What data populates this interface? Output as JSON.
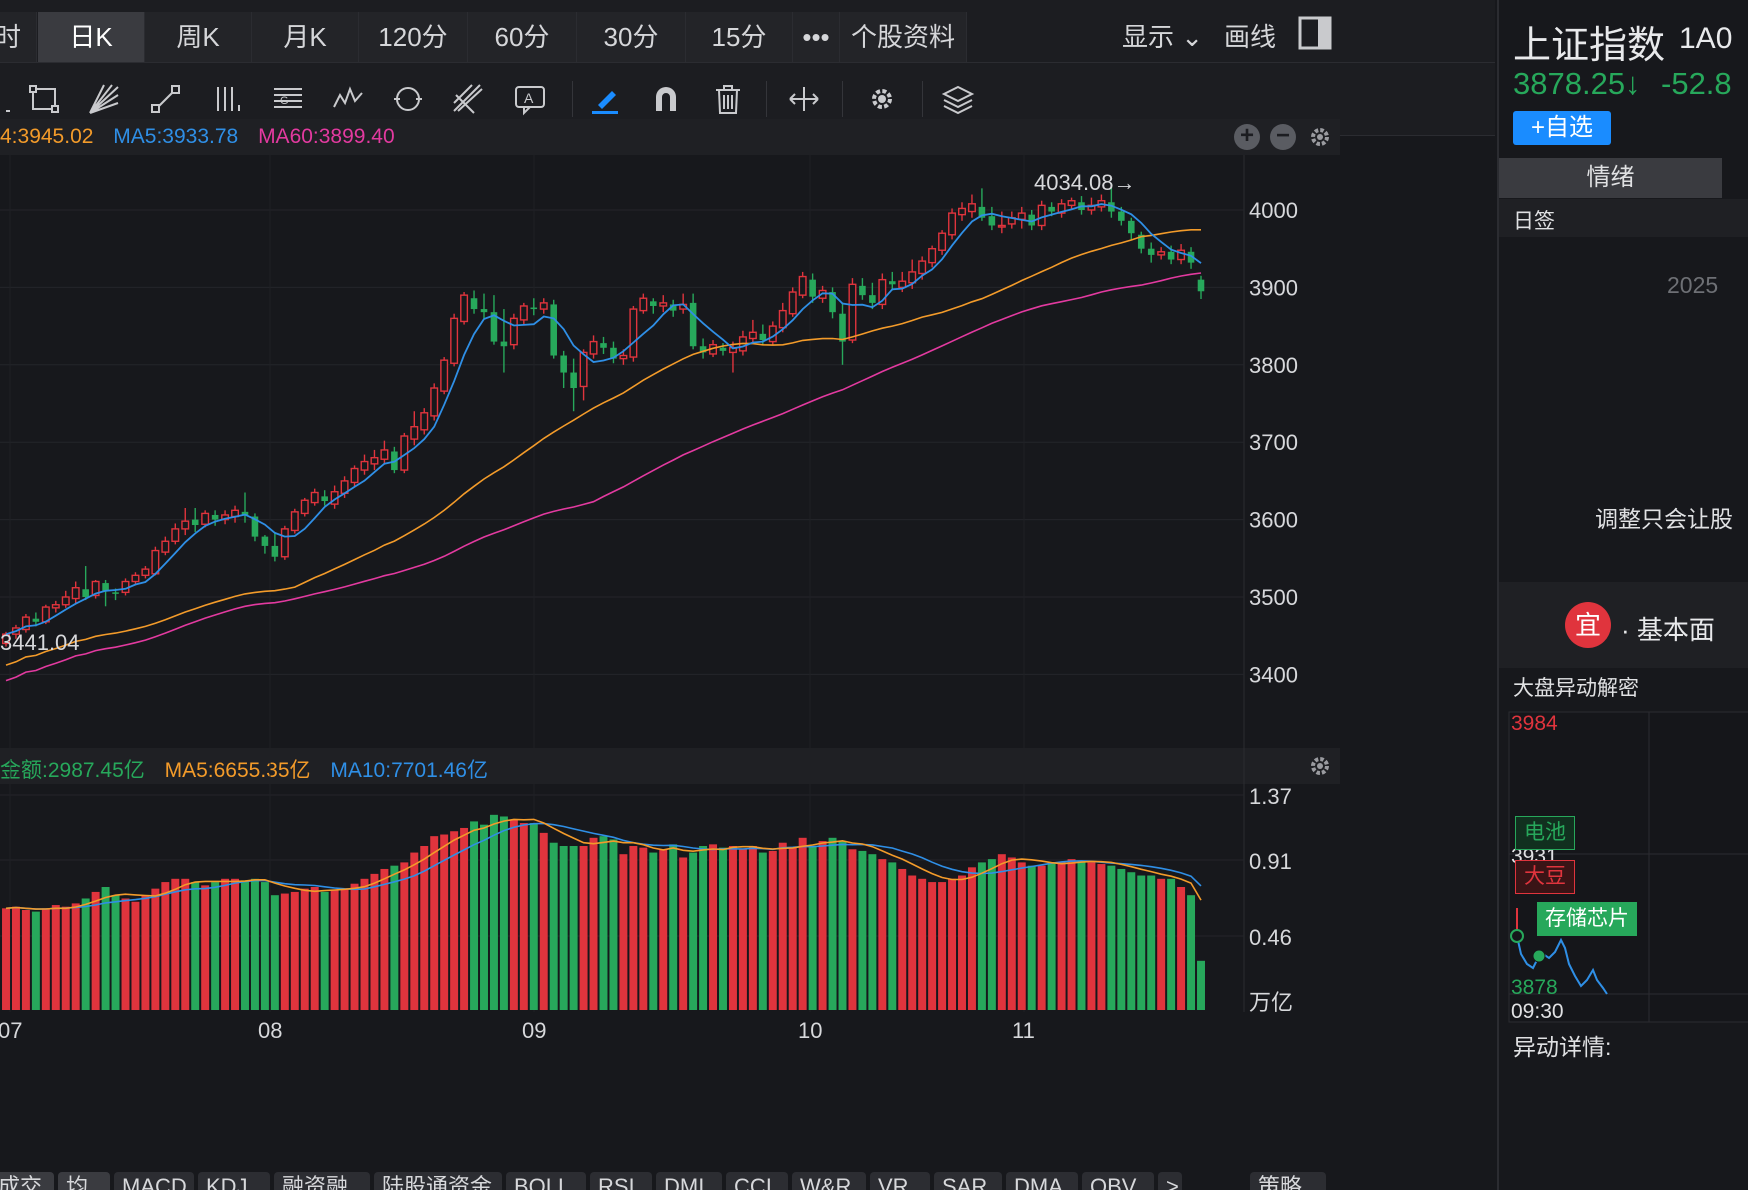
{
  "periods": {
    "first_partial": "时",
    "items": [
      "日K",
      "周K",
      "月K",
      "120分",
      "60分",
      "30分",
      "15分",
      "•••",
      "个股资料"
    ],
    "active": "日K"
  },
  "display_label": "显示",
  "draw_label": "画线",
  "main_legend": {
    "ma_prefix_partial": "4:3945.02",
    "ma5": "MA5:3933.78",
    "ma60": "MA60:3899.40"
  },
  "volume_legend": {
    "amount": "金额:2987.45亿",
    "ma5": "MA5:6655.35亿",
    "ma10": "MA10:7701.46亿"
  },
  "annotations": {
    "high": "4034.08→",
    "low": "←3441.04"
  },
  "y_axis_price": [
    "4000",
    "3900",
    "3800",
    "3700",
    "3600",
    "3500",
    "3400"
  ],
  "y_axis_volume": [
    "1.37",
    "0.91",
    "0.46",
    "万亿"
  ],
  "x_axis": [
    "07",
    "08",
    "09",
    "10",
    "11"
  ],
  "indicator_tabs": [
    "成交额",
    "均线",
    "MACD",
    "KDJ",
    "融资融券",
    "陆股通资金",
    "BOLL",
    "RSI",
    "DMI",
    "CCI",
    "W&R",
    "VR",
    "SAR",
    "DMA",
    "OBV",
    ">",
    "策略"
  ],
  "colors": {
    "up": "#e0343d",
    "down": "#27a85b",
    "ma5": "#2f8fe6",
    "ma10": "#f39b2a",
    "ma60": "#e33aa0",
    "accent": "#1a8cff"
  },
  "right_panel": {
    "index_name": "上证指数",
    "code_partial": "1A0",
    "price": "3878.25↓",
    "change_partial": "-52.8",
    "add_watchlist": "+自选",
    "sentiment_tab": "情绪",
    "daily_sign": "日签",
    "date_partial": "2025",
    "quote_partial": "调整只会让股",
    "fundamentals_badge": "宜",
    "fundamentals_label": "· 基本面",
    "market_section": "大盘异动解密",
    "mini_high": "3984",
    "mini_mid": "3931",
    "mini_low": "3878",
    "mini_time": "09:30",
    "tag_battery": "电池",
    "tag_soy": "大豆",
    "tag_storage": "存储芯片",
    "detail_label": "异动详情:"
  },
  "chart_data": {
    "type": "candlestick",
    "price_axis": {
      "ticks": [
        3400,
        3500,
        3600,
        3700,
        3800,
        3900,
        4000
      ]
    },
    "marked_high": 4034.08,
    "marked_low": 3441.04,
    "candles": [
      [
        3440,
        3452,
        3436,
        3455
      ],
      [
        3452,
        3460,
        3446,
        3464
      ],
      [
        3458,
        3474,
        3454,
        3478
      ],
      [
        3472,
        3468,
        3462,
        3480
      ],
      [
        3468,
        3487,
        3465,
        3490
      ],
      [
        3486,
        3490,
        3480,
        3495
      ],
      [
        3490,
        3500,
        3486,
        3508
      ],
      [
        3498,
        3512,
        3492,
        3520
      ],
      [
        3510,
        3500,
        3496,
        3540
      ],
      [
        3502,
        3520,
        3498,
        3522
      ],
      [
        3518,
        3508,
        3488,
        3522
      ],
      [
        3506,
        3505,
        3496,
        3511
      ],
      [
        3506,
        3520,
        3502,
        3524
      ],
      [
        3520,
        3528,
        3516,
        3532
      ],
      [
        3528,
        3536,
        3524,
        3540
      ],
      [
        3530,
        3560,
        3528,
        3565
      ],
      [
        3558,
        3572,
        3554,
        3578
      ],
      [
        3572,
        3588,
        3568,
        3595
      ],
      [
        3588,
        3598,
        3580,
        3615
      ],
      [
        3600,
        3593,
        3584,
        3615
      ],
      [
        3594,
        3608,
        3590,
        3612
      ],
      [
        3606,
        3600,
        3592,
        3612
      ],
      [
        3600,
        3606,
        3594,
        3612
      ],
      [
        3604,
        3612,
        3596,
        3618
      ],
      [
        3610,
        3606,
        3596,
        3635
      ],
      [
        3604,
        3578,
        3572,
        3608
      ],
      [
        3578,
        3566,
        3556,
        3580
      ],
      [
        3566,
        3552,
        3546,
        3582
      ],
      [
        3552,
        3588,
        3548,
        3592
      ],
      [
        3586,
        3610,
        3582,
        3614
      ],
      [
        3608,
        3625,
        3604,
        3628
      ],
      [
        3622,
        3635,
        3618,
        3640
      ],
      [
        3630,
        3624,
        3618,
        3638
      ],
      [
        3620,
        3636,
        3614,
        3644
      ],
      [
        3634,
        3650,
        3628,
        3656
      ],
      [
        3648,
        3666,
        3642,
        3670
      ],
      [
        3664,
        3675,
        3658,
        3684
      ],
      [
        3672,
        3680,
        3664,
        3690
      ],
      [
        3678,
        3690,
        3672,
        3702
      ],
      [
        3688,
        3664,
        3660,
        3694
      ],
      [
        3664,
        3708,
        3660,
        3712
      ],
      [
        3704,
        3720,
        3696,
        3740
      ],
      [
        3716,
        3738,
        3710,
        3744
      ],
      [
        3734,
        3770,
        3728,
        3776
      ],
      [
        3766,
        3806,
        3762,
        3810
      ],
      [
        3802,
        3860,
        3798,
        3866
      ],
      [
        3856,
        3890,
        3852,
        3894
      ],
      [
        3886,
        3872,
        3866,
        3896
      ],
      [
        3872,
        3868,
        3860,
        3892
      ],
      [
        3868,
        3830,
        3826,
        3890
      ],
      [
        3830,
        3824,
        3790,
        3872
      ],
      [
        3826,
        3860,
        3820,
        3866
      ],
      [
        3858,
        3876,
        3852,
        3880
      ],
      [
        3874,
        3872,
        3864,
        3886
      ],
      [
        3872,
        3880,
        3866,
        3886
      ],
      [
        3878,
        3812,
        3808,
        3884
      ],
      [
        3812,
        3790,
        3770,
        3818
      ],
      [
        3790,
        3770,
        3740,
        3808
      ],
      [
        3772,
        3816,
        3754,
        3820
      ],
      [
        3814,
        3830,
        3808,
        3838
      ],
      [
        3828,
        3822,
        3814,
        3836
      ],
      [
        3822,
        3808,
        3802,
        3830
      ],
      [
        3808,
        3812,
        3800,
        3820
      ],
      [
        3810,
        3872,
        3804,
        3876
      ],
      [
        3870,
        3886,
        3866,
        3892
      ],
      [
        3882,
        3876,
        3866,
        3886
      ],
      [
        3876,
        3880,
        3868,
        3890
      ],
      [
        3878,
        3870,
        3862,
        3884
      ],
      [
        3872,
        3878,
        3866,
        3892
      ],
      [
        3880,
        3824,
        3820,
        3892
      ],
      [
        3824,
        3816,
        3808,
        3834
      ],
      [
        3814,
        3826,
        3810,
        3832
      ],
      [
        3822,
        3818,
        3812,
        3828
      ],
      [
        3816,
        3822,
        3790,
        3830
      ],
      [
        3818,
        3836,
        3812,
        3844
      ],
      [
        3834,
        3842,
        3828,
        3858
      ],
      [
        3840,
        3832,
        3826,
        3852
      ],
      [
        3830,
        3850,
        3826,
        3856
      ],
      [
        3848,
        3870,
        3842,
        3880
      ],
      [
        3866,
        3894,
        3862,
        3900
      ],
      [
        3890,
        3914,
        3886,
        3920
      ],
      [
        3910,
        3888,
        3880,
        3918
      ],
      [
        3886,
        3896,
        3880,
        3902
      ],
      [
        3894,
        3868,
        3860,
        3900
      ],
      [
        3866,
        3830,
        3800,
        3880
      ],
      [
        3832,
        3904,
        3828,
        3912
      ],
      [
        3902,
        3890,
        3884,
        3912
      ],
      [
        3890,
        3880,
        3872,
        3906
      ],
      [
        3878,
        3910,
        3872,
        3918
      ],
      [
        3908,
        3904,
        3896,
        3920
      ],
      [
        3900,
        3908,
        3894,
        3920
      ],
      [
        3906,
        3920,
        3898,
        3936
      ],
      [
        3918,
        3934,
        3910,
        3940
      ],
      [
        3932,
        3950,
        3926,
        3954
      ],
      [
        3948,
        3970,
        3942,
        3974
      ],
      [
        3968,
        3996,
        3962,
        4002
      ],
      [
        3994,
        4002,
        3986,
        4010
      ],
      [
        3998,
        4008,
        3990,
        4020
      ],
      [
        4004,
        3990,
        3986,
        4028
      ],
      [
        3992,
        3980,
        3974,
        4004
      ],
      [
        3978,
        3980,
        3970,
        3998
      ],
      [
        3982,
        3990,
        3976,
        3998
      ],
      [
        3988,
        3996,
        3976,
        4004
      ],
      [
        3994,
        3980,
        3974,
        4000
      ],
      [
        3980,
        4006,
        3974,
        4012
      ],
      [
        4004,
        3998,
        3992,
        4010
      ],
      [
        3996,
        4008,
        3990,
        4014
      ],
      [
        4006,
        4012,
        4000,
        4016
      ],
      [
        4010,
        4000,
        3994,
        4018
      ],
      [
        4000,
        4006,
        3994,
        4016
      ],
      [
        4004,
        4012,
        3998,
        4020
      ],
      [
        4010,
        3998,
        3990,
        4034
      ],
      [
        3998,
        3986,
        3980,
        4004
      ],
      [
        3986,
        3970,
        3962,
        3990
      ],
      [
        3968,
        3950,
        3944,
        3972
      ],
      [
        3950,
        3942,
        3932,
        3958
      ],
      [
        3942,
        3946,
        3936,
        3952
      ],
      [
        3946,
        3936,
        3930,
        3954
      ],
      [
        3936,
        3948,
        3930,
        3956
      ],
      [
        3946,
        3932,
        3924,
        3952
      ],
      [
        3910,
        3895,
        3885,
        3915
      ]
    ],
    "volume": [
      0.62,
      0.63,
      0.61,
      0.6,
      0.62,
      0.64,
      0.63,
      0.65,
      0.68,
      0.72,
      0.75,
      0.7,
      0.68,
      0.66,
      0.7,
      0.74,
      0.78,
      0.8,
      0.8,
      0.78,
      0.76,
      0.78,
      0.8,
      0.8,
      0.79,
      0.8,
      0.78,
      0.7,
      0.71,
      0.72,
      0.74,
      0.75,
      0.72,
      0.73,
      0.74,
      0.77,
      0.8,
      0.83,
      0.86,
      0.88,
      0.9,
      0.96,
      1.0,
      1.06,
      1.07,
      1.09,
      1.11,
      1.15,
      1.13,
      1.19,
      1.18,
      1.16,
      1.14,
      1.14,
      1.08,
      1.02,
      1.0,
      1.0,
      1.0,
      1.05,
      1.06,
      1.04,
      0.95,
      1.0,
      0.99,
      0.96,
      0.98,
      1.01,
      0.93,
      0.96,
      1.0,
      1.01,
      0.99,
      1.0,
      0.98,
      1.0,
      0.96,
      0.97,
      1.02,
      0.99,
      1.05,
      1.0,
      1.03,
      1.05,
      1.03,
      0.98,
      0.97,
      0.95,
      0.92,
      0.9,
      0.86,
      0.82,
      0.8,
      0.78,
      0.78,
      0.8,
      0.82,
      0.87,
      0.9,
      0.92,
      0.95,
      0.93,
      0.9,
      0.88,
      0.88,
      0.9,
      0.9,
      0.92,
      0.91,
      0.9,
      0.89,
      0.88,
      0.86,
      0.84,
      0.82,
      0.82,
      0.8,
      0.8,
      0.75,
      0.7,
      0.3
    ],
    "month_labels": [
      "07",
      "08",
      "09",
      "10",
      "11"
    ]
  }
}
